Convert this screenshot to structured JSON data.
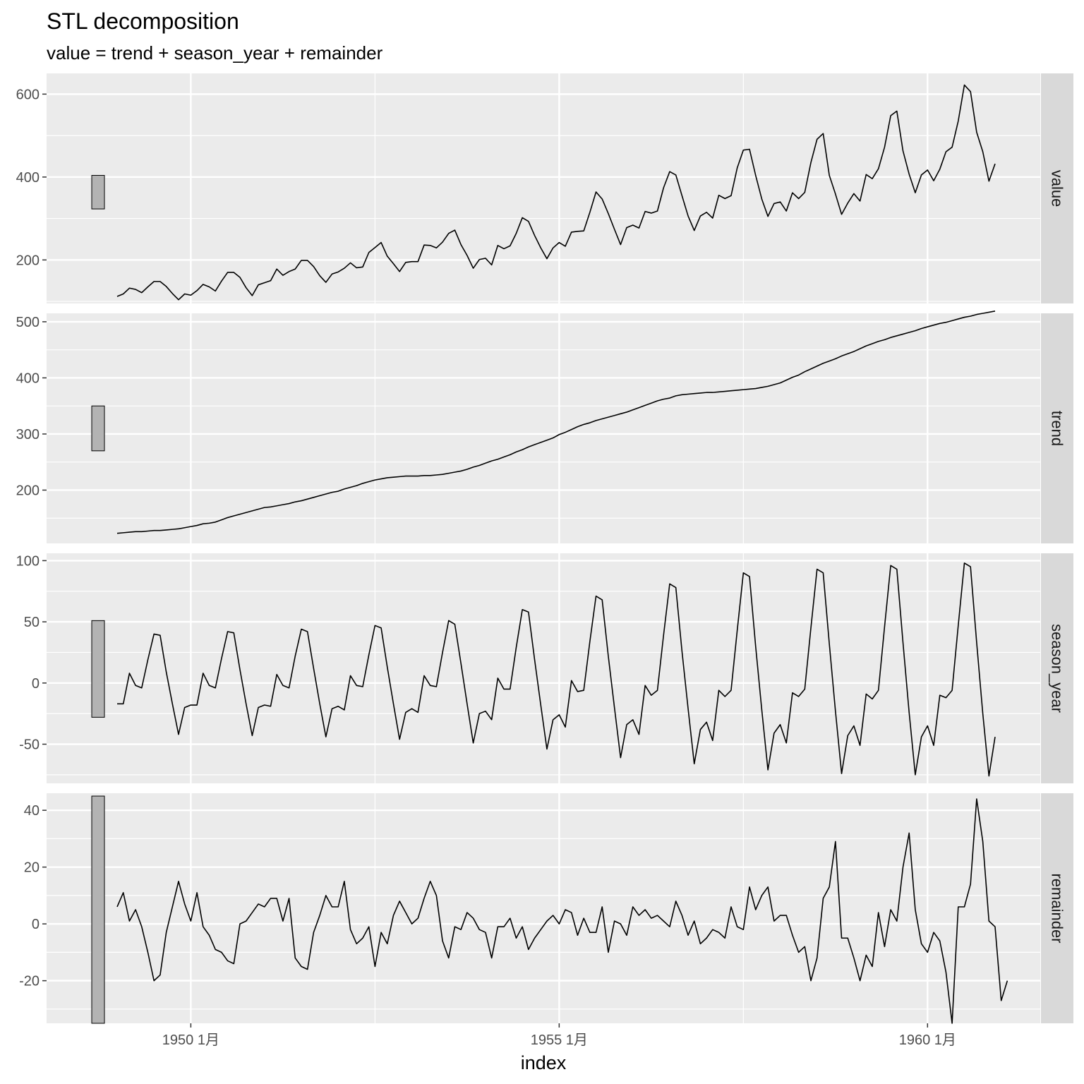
{
  "chart_data": {
    "type": "line",
    "title": "STL decomposition",
    "subtitle": "value = trend + season_year + remainder",
    "xlabel": "index",
    "x_start": "1949-01",
    "x_end": "1960-12",
    "frequency": "monthly",
    "x_ticks": [
      {
        "date": "1950-01",
        "label": "1950 1月"
      },
      {
        "date": "1955-01",
        "label": "1955 1月"
      },
      {
        "date": "1960-01",
        "label": "1960 1月"
      }
    ],
    "grid": true,
    "line_color": "#000000",
    "panel_background": "#ebebeb",
    "strip_background": "#d9d9d9",
    "scale_bar_color": "#b3b3b3",
    "facets": [
      {
        "name": "value",
        "ylim": [
          95,
          650
        ],
        "y_ticks": [
          200,
          400,
          600
        ],
        "scale_bar": [
          323,
          404
        ],
        "values": [
          112,
          118,
          132,
          129,
          121,
          135,
          148,
          148,
          136,
          119,
          104,
          118,
          115,
          126,
          141,
          135,
          125,
          149,
          170,
          170,
          158,
          133,
          114,
          140,
          145,
          150,
          178,
          163,
          172,
          178,
          199,
          199,
          184,
          162,
          146,
          166,
          171,
          180,
          193,
          181,
          183,
          218,
          230,
          242,
          209,
          191,
          172,
          194,
          196,
          196,
          236,
          235,
          229,
          243,
          264,
          272,
          237,
          211,
          180,
          201,
          204,
          188,
          235,
          227,
          234,
          264,
          302,
          293,
          259,
          229,
          203,
          229,
          242,
          233,
          267,
          269,
          270,
          315,
          364,
          347,
          312,
          274,
          237,
          278,
          284,
          277,
          317,
          313,
          318,
          374,
          413,
          405,
          355,
          306,
          271,
          306,
          315,
          301,
          356,
          348,
          355,
          422,
          465,
          467,
          404,
          347,
          305,
          336,
          340,
          318,
          362,
          348,
          363,
          435,
          491,
          505,
          404,
          359,
          310,
          337,
          360,
          342,
          406,
          396,
          420,
          472,
          548,
          559,
          463,
          407,
          362,
          405,
          417,
          391,
          419,
          461,
          472,
          535,
          622,
          606,
          508,
          461,
          390,
          432
        ]
      },
      {
        "name": "trend",
        "ylim": [
          105,
          515
        ],
        "y_ticks": [
          200,
          300,
          400,
          500
        ],
        "scale_bar": [
          270,
          350
        ],
        "values": [
          123,
          124,
          125,
          126,
          126,
          127,
          128,
          128,
          129,
          130,
          131,
          133,
          135,
          137,
          140,
          141,
          143,
          147,
          151,
          154,
          157,
          160,
          163,
          166,
          169,
          170,
          172,
          174,
          176,
          179,
          181,
          184,
          187,
          190,
          193,
          196,
          198,
          202,
          205,
          208,
          212,
          215,
          218,
          220,
          222,
          223,
          224,
          225,
          225,
          225,
          226,
          226,
          227,
          228,
          230,
          232,
          234,
          237,
          241,
          244,
          248,
          252,
          255,
          259,
          263,
          268,
          272,
          277,
          281,
          285,
          289,
          293,
          299,
          303,
          308,
          313,
          317,
          320,
          324,
          327,
          330,
          333,
          336,
          339,
          343,
          347,
          351,
          355,
          359,
          362,
          364,
          368,
          370,
          371,
          372,
          373,
          374,
          374,
          375,
          376,
          377,
          378,
          379,
          380,
          381,
          383,
          385,
          388,
          391,
          396,
          401,
          405,
          411,
          416,
          421,
          426,
          430,
          434,
          439,
          443,
          447,
          452,
          457,
          461,
          465,
          468,
          472,
          475,
          478,
          481,
          484,
          488,
          491,
          494,
          497,
          499,
          502,
          505,
          508,
          510,
          513,
          515,
          517,
          519
        ]
      },
      {
        "name": "season_year",
        "ylim": [
          -82,
          106
        ],
        "y_ticks": [
          -50,
          0,
          50,
          100
        ],
        "scale_bar": [
          -28,
          51
        ],
        "values": [
          -17,
          -17,
          8,
          -2,
          -4,
          19,
          40,
          39,
          9,
          -17,
          -42,
          -20,
          -18,
          -18,
          8,
          -2,
          -4,
          20,
          42,
          41,
          11,
          -17,
          -43,
          -20,
          -18,
          -19,
          7,
          -2,
          -4,
          22,
          44,
          42,
          12,
          -17,
          -44,
          -21,
          -19,
          -22,
          6,
          -2,
          -3,
          23,
          47,
          45,
          13,
          -17,
          -46,
          -24,
          -21,
          -24,
          6,
          -2,
          -3,
          25,
          51,
          48,
          16,
          -17,
          -49,
          -25,
          -23,
          -30,
          4,
          -5,
          -5,
          29,
          60,
          58,
          19,
          -18,
          -54,
          -30,
          -26,
          -36,
          2,
          -7,
          -6,
          34,
          71,
          68,
          22,
          -20,
          -61,
          -34,
          -30,
          -42,
          -2,
          -10,
          -6,
          39,
          81,
          78,
          26,
          -21,
          -66,
          -38,
          -32,
          -47,
          -6,
          -11,
          -6,
          43,
          90,
          87,
          30,
          -22,
          -71,
          -41,
          -34,
          -49,
          -8,
          -11,
          -5,
          45,
          93,
          90,
          32,
          -23,
          -74,
          -43,
          -35,
          -51,
          -9,
          -13,
          -6,
          46,
          96,
          93,
          33,
          -24,
          -75,
          -44,
          -35,
          -51,
          -10,
          -12,
          -6,
          47,
          98,
          95,
          33,
          -25,
          -76,
          -44
        ]
      },
      {
        "name": "remainder",
        "ylim": [
          -35,
          46
        ],
        "y_ticks": [
          -20,
          0,
          20,
          40
        ],
        "scale_bar": [
          -35,
          45
        ],
        "values": [
          6,
          11,
          1,
          5,
          -1,
          -10,
          -20,
          -18,
          -3,
          6,
          15,
          7,
          1,
          11,
          -1,
          -4,
          -9,
          -10,
          -13,
          -14,
          0,
          1,
          4,
          7,
          6,
          9,
          9,
          1,
          9,
          -12,
          -15,
          -16,
          -3,
          3,
          10,
          6,
          6,
          15,
          -2,
          -7,
          -5,
          -1,
          -15,
          -3,
          -7,
          3,
          8,
          4,
          0,
          2,
          9,
          15,
          10,
          -6,
          -12,
          -1,
          -2,
          4,
          2,
          -2,
          -3,
          -12,
          -1,
          -1,
          2,
          -5,
          -1,
          -9,
          -5,
          -2,
          1,
          3,
          0,
          5,
          4,
          -4,
          2,
          -3,
          -3,
          6,
          -10,
          1,
          0,
          -4,
          6,
          3,
          5,
          2,
          3,
          1,
          -1,
          8,
          3,
          -4,
          1,
          -7,
          -5,
          -2,
          -3,
          -5,
          6,
          -1,
          -2,
          13,
          5,
          10,
          13,
          1,
          3,
          3,
          -4,
          -10,
          -8,
          -20,
          -12,
          9,
          13,
          29,
          -5,
          -5,
          -12,
          -20,
          -11,
          -15,
          4,
          -8,
          5,
          1,
          20,
          32,
          5,
          -7,
          -10,
          -3,
          -6,
          -17,
          -35,
          6,
          6,
          14,
          44,
          29,
          1,
          -1,
          -27,
          -20
        ]
      }
    ]
  }
}
